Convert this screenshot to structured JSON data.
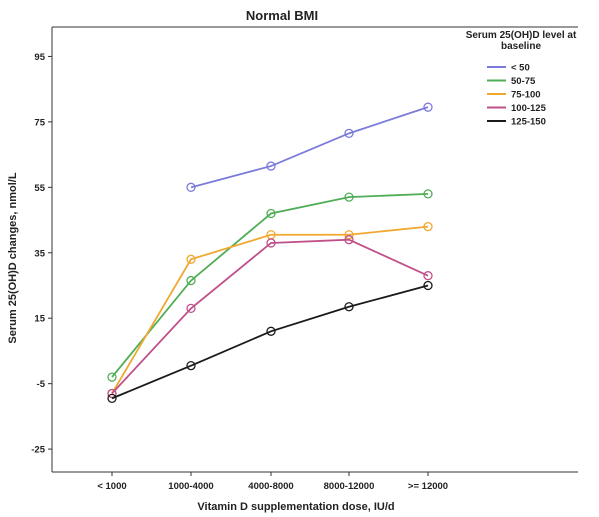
{
  "chart_data": {
    "type": "line",
    "title": "Normal BMI",
    "xlabel": "Vitamin D supplementation dose, IU/d",
    "ylabel": "Serum 25(OH)D changes, nmol/L",
    "categories": [
      "< 1000",
      "1000-4000",
      "4000-8000",
      "8000-12000",
      ">= 12000"
    ],
    "yticks": [
      95,
      75,
      55,
      35,
      15,
      -5,
      -25
    ],
    "ylim": [
      -32,
      104
    ],
    "grid": false,
    "legend": {
      "title_lines": [
        "Serum 25(OH)D level at",
        "baseline"
      ],
      "placement": "top-right"
    },
    "series": [
      {
        "name": "< 50",
        "color": "#7b7bd9",
        "values": [
          null,
          55,
          61.5,
          71.5,
          79.5
        ]
      },
      {
        "name": "50-75",
        "color": "#4fae55",
        "values": [
          -3,
          26.5,
          47,
          52,
          53
        ]
      },
      {
        "name": "75-100",
        "color": "#f0a830",
        "values": [
          -8,
          33,
          40.5,
          40.5,
          43
        ]
      },
      {
        "name": "100-125",
        "color": "#c0508a",
        "values": [
          -8,
          18,
          38,
          39,
          28
        ]
      },
      {
        "name": "125-150",
        "color": "#1a1a1a",
        "values": [
          -9.5,
          0.5,
          11,
          18.5,
          25
        ]
      }
    ]
  }
}
